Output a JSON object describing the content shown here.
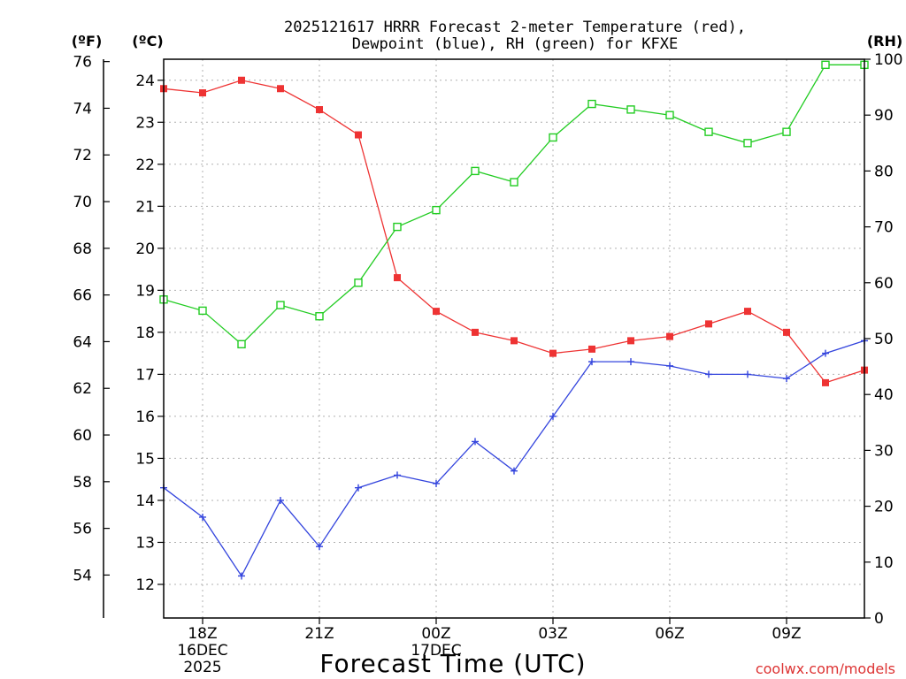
{
  "chart_data": {
    "type": "line",
    "title_line1": "2025121617 HRRR Forecast 2-meter Temperature (red),",
    "title_line2": "Dewpoint (blue), RH (green) for KFXE",
    "xlabel": "Forecast Time (UTC)",
    "watermark": "coolwx.com/models",
    "unit_labels": {
      "fahrenheit": "(ºF)",
      "celsius": "(ºC)",
      "rh": "(RH)"
    },
    "x": [
      17,
      18,
      19,
      20,
      21,
      22,
      23,
      24,
      25,
      26,
      27,
      28,
      29,
      30,
      31,
      32,
      33,
      34,
      35
    ],
    "xlim": [
      17,
      35
    ],
    "x_ticks": [
      {
        "x": 18,
        "label": "18Z",
        "sub": [
          "16DEC",
          "2025"
        ]
      },
      {
        "x": 21,
        "label": "21Z",
        "sub": []
      },
      {
        "x": 24,
        "label": "00Z",
        "sub": [
          "17DEC"
        ]
      },
      {
        "x": 27,
        "label": "03Z",
        "sub": []
      },
      {
        "x": 30,
        "label": "06Z",
        "sub": []
      },
      {
        "x": 33,
        "label": "09Z",
        "sub": []
      }
    ],
    "celsius_axis": {
      "ylim": [
        11.2,
        24.5
      ],
      "ticks": [
        12,
        13,
        14,
        15,
        16,
        17,
        18,
        19,
        20,
        21,
        22,
        23,
        24
      ]
    },
    "fahrenheit_axis": {
      "ticks": [
        54,
        56,
        58,
        60,
        62,
        64,
        66,
        68,
        70,
        72,
        74,
        76
      ]
    },
    "rh_axis": {
      "ylim": [
        0,
        100
      ],
      "ticks": [
        0,
        10,
        20,
        30,
        40,
        50,
        60,
        70,
        80,
        90,
        100
      ]
    },
    "series": [
      {
        "name": "Temperature",
        "color": "#ee3333",
        "marker": "filled-square",
        "axis": "celsius",
        "values": [
          23.8,
          23.7,
          24.0,
          23.8,
          23.3,
          22.7,
          19.3,
          18.5,
          18.0,
          17.8,
          17.5,
          17.6,
          17.8,
          17.9,
          18.2,
          18.5,
          18.0,
          16.8,
          17.1
        ]
      },
      {
        "name": "Dewpoint",
        "color": "#3344dd",
        "marker": "plus",
        "axis": "celsius",
        "values": [
          14.3,
          13.6,
          12.2,
          14.0,
          12.9,
          14.3,
          14.6,
          14.4,
          15.4,
          14.7,
          16.0,
          17.3,
          17.3,
          17.2,
          17.0,
          17.0,
          16.9,
          17.5,
          17.8
        ]
      },
      {
        "name": "RH",
        "color": "#22cc22",
        "marker": "open-square",
        "axis": "rh",
        "values": [
          57,
          55,
          49,
          56,
          54,
          60,
          70,
          73,
          80,
          78,
          86,
          92,
          91,
          90,
          87,
          85,
          87,
          99,
          99
        ]
      }
    ]
  }
}
